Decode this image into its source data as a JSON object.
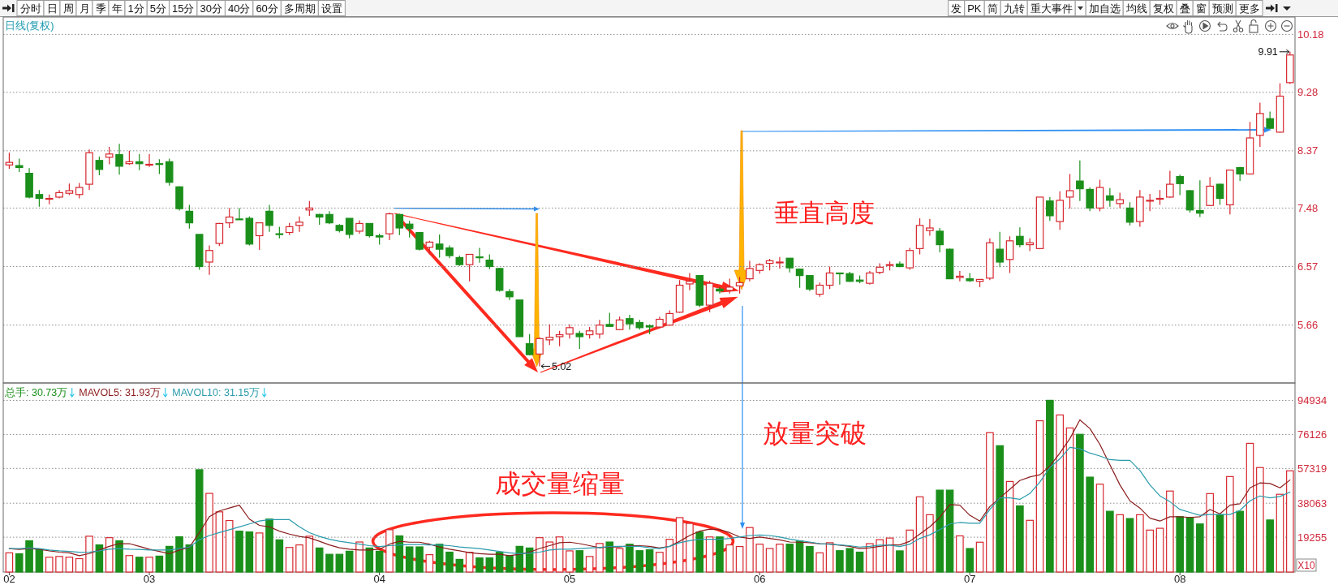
{
  "chart_data": [
    {
      "type": "other",
      "annotations": [
        "分时",
        "日",
        "周",
        "月",
        "季",
        "年",
        "1分",
        "5分",
        "15分",
        "30分",
        "40分",
        "60分",
        "多周期",
        "设置"
      ]
    },
    {
      "type": "other",
      "annotations": [
        "发",
        "PK",
        "简",
        "九转",
        "重大事件",
        "加自选",
        "均线",
        "复权",
        "叠",
        "窗",
        "预测",
        "更多"
      ]
    },
    {
      "type": "candlestick",
      "title": "日线(复权)",
      "categories": [
        null,
        null,
        null,
        null,
        null,
        null,
        null,
        null,
        null,
        null,
        null,
        null,
        null,
        null,
        null,
        null,
        null,
        null,
        null,
        null,
        null,
        null,
        null,
        null,
        null,
        null,
        null,
        null,
        null,
        null,
        null,
        null,
        null,
        null,
        null,
        null,
        null,
        null,
        null,
        null,
        null,
        null,
        null,
        null,
        null,
        null,
        null,
        null,
        null,
        null,
        null,
        null,
        null,
        null,
        null,
        null,
        null,
        null,
        null,
        null,
        null,
        null,
        null,
        null,
        null,
        null,
        null,
        null,
        null,
        null,
        null,
        null,
        null,
        null,
        null,
        null,
        null,
        null,
        null,
        null,
        null,
        null,
        null,
        null,
        null,
        null,
        null,
        null,
        null,
        null,
        null,
        null,
        null,
        null,
        null,
        null,
        null,
        null,
        null,
        null,
        null,
        null,
        null,
        null,
        null,
        null,
        null,
        null,
        null,
        null,
        null,
        null,
        null,
        null,
        null,
        null,
        null,
        null,
        null,
        null,
        null,
        null,
        null,
        null,
        null,
        null,
        null,
        null,
        null
      ],
      "ohlc": [
        [
          8.15,
          8.34,
          8.09,
          8.19
        ],
        [
          8.14,
          8.25,
          8.04,
          8.11
        ],
        [
          8.02,
          8.1,
          7.63,
          7.65
        ],
        [
          7.69,
          7.76,
          7.5,
          7.63
        ],
        [
          7.62,
          7.69,
          7.54,
          7.63
        ],
        [
          7.65,
          7.76,
          7.63,
          7.72
        ],
        [
          7.71,
          7.86,
          7.68,
          7.75
        ],
        [
          7.69,
          7.87,
          7.63,
          7.8
        ],
        [
          7.85,
          8.39,
          7.76,
          8.34
        ],
        [
          8.22,
          8.28,
          7.99,
          8.08
        ],
        [
          8.27,
          8.43,
          8.16,
          8.32
        ],
        [
          8.31,
          8.48,
          8.0,
          8.13
        ],
        [
          8.17,
          8.37,
          8.15,
          8.2
        ],
        [
          8.2,
          8.32,
          8.07,
          8.17
        ],
        [
          8.15,
          8.32,
          8.12,
          8.16
        ],
        [
          8.17,
          8.24,
          8.01,
          8.16
        ],
        [
          8.2,
          8.25,
          7.83,
          7.88
        ],
        [
          7.81,
          7.82,
          7.44,
          7.47
        ],
        [
          7.43,
          7.53,
          7.16,
          7.25
        ],
        [
          7.07,
          7.07,
          6.52,
          6.57
        ],
        [
          6.64,
          6.9,
          6.44,
          6.82
        ],
        [
          6.93,
          7.25,
          6.89,
          7.24
        ],
        [
          7.25,
          7.48,
          7.17,
          7.34
        ],
        [
          7.31,
          7.48,
          7.3,
          7.3
        ],
        [
          7.32,
          7.35,
          6.9,
          6.92
        ],
        [
          7.05,
          7.25,
          6.83,
          7.25
        ],
        [
          7.43,
          7.53,
          7.11,
          7.21
        ],
        [
          7.08,
          7.19,
          7.01,
          7.07
        ],
        [
          7.1,
          7.25,
          7.06,
          7.19
        ],
        [
          7.21,
          7.35,
          7.11,
          7.26
        ],
        [
          7.45,
          7.59,
          7.36,
          7.48
        ],
        [
          7.38,
          7.39,
          7.22,
          7.34
        ],
        [
          7.38,
          7.43,
          7.23,
          7.25
        ],
        [
          7.21,
          7.23,
          7.1,
          7.13
        ],
        [
          7.32,
          7.32,
          7.01,
          7.07
        ],
        [
          7.12,
          7.29,
          7.08,
          7.24
        ],
        [
          7.24,
          7.24,
          7.02,
          7.05
        ],
        [
          7.05,
          7.08,
          6.91,
          7.03
        ],
        [
          7.08,
          7.41,
          6.98,
          7.39
        ],
        [
          7.38,
          7.39,
          7.06,
          7.17
        ],
        [
          7.23,
          7.28,
          7.02,
          7.16
        ],
        [
          7.1,
          7.1,
          6.82,
          6.84
        ],
        [
          6.87,
          6.97,
          6.76,
          6.95
        ],
        [
          6.92,
          7.07,
          6.71,
          6.84
        ],
        [
          6.86,
          6.9,
          6.7,
          6.74
        ],
        [
          6.71,
          6.74,
          6.58,
          6.6
        ],
        [
          6.6,
          6.76,
          6.34,
          6.76
        ],
        [
          6.72,
          6.86,
          6.63,
          6.71
        ],
        [
          6.67,
          6.76,
          6.53,
          6.57
        ],
        [
          6.54,
          6.55,
          6.18,
          6.2
        ],
        [
          6.18,
          6.22,
          6.05,
          6.1
        ],
        [
          6.05,
          6.05,
          5.48,
          5.48
        ],
        [
          5.37,
          5.52,
          5.19,
          5.2
        ],
        [
          5.21,
          5.47,
          5.02,
          5.45
        ],
        [
          5.43,
          5.67,
          5.35,
          5.47
        ],
        [
          5.48,
          5.57,
          5.33,
          5.51
        ],
        [
          5.52,
          5.67,
          5.45,
          5.62
        ],
        [
          5.53,
          5.57,
          5.29,
          5.48
        ],
        [
          5.51,
          5.63,
          5.45,
          5.57
        ],
        [
          5.52,
          5.74,
          5.45,
          5.66
        ],
        [
          5.67,
          5.85,
          5.64,
          5.64
        ],
        [
          5.59,
          5.79,
          5.58,
          5.74
        ],
        [
          5.76,
          5.82,
          5.59,
          5.68
        ],
        [
          5.7,
          5.74,
          5.59,
          5.62
        ],
        [
          5.65,
          5.67,
          5.52,
          5.63
        ],
        [
          5.63,
          5.79,
          5.61,
          5.75
        ],
        [
          5.66,
          5.89,
          5.65,
          5.84
        ],
        [
          5.86,
          6.36,
          5.85,
          6.28
        ],
        [
          6.3,
          6.47,
          6.2,
          6.34
        ],
        [
          6.43,
          6.43,
          5.94,
          5.97
        ],
        [
          5.97,
          6.35,
          5.86,
          6.31
        ],
        [
          6.22,
          6.25,
          6.15,
          6.19
        ],
        [
          6.2,
          6.38,
          6.15,
          6.25
        ],
        [
          6.27,
          6.41,
          6.15,
          6.32
        ],
        [
          6.38,
          6.66,
          6.34,
          6.54
        ],
        [
          6.51,
          6.62,
          6.46,
          6.6
        ],
        [
          6.62,
          6.69,
          6.51,
          6.66
        ],
        [
          6.63,
          6.72,
          6.54,
          6.64
        ],
        [
          6.7,
          6.7,
          6.48,
          6.55
        ],
        [
          6.53,
          6.54,
          6.24,
          6.43
        ],
        [
          6.43,
          6.43,
          6.19,
          6.22
        ],
        [
          6.14,
          6.32,
          6.1,
          6.28
        ],
        [
          6.28,
          6.57,
          6.22,
          6.47
        ],
        [
          6.47,
          6.47,
          6.29,
          6.47
        ],
        [
          6.46,
          6.49,
          6.33,
          6.34
        ],
        [
          6.36,
          6.43,
          6.31,
          6.34
        ],
        [
          6.31,
          6.5,
          6.29,
          6.47
        ],
        [
          6.48,
          6.62,
          6.45,
          6.56
        ],
        [
          6.59,
          6.65,
          6.51,
          6.6
        ],
        [
          6.61,
          6.65,
          6.56,
          6.57
        ],
        [
          6.55,
          6.86,
          6.52,
          6.82
        ],
        [
          6.85,
          7.32,
          6.76,
          7.21
        ],
        [
          7.13,
          7.31,
          7.05,
          7.17
        ],
        [
          7.12,
          7.17,
          6.79,
          6.91
        ],
        [
          6.84,
          6.85,
          6.38,
          6.38
        ],
        [
          6.4,
          6.5,
          6.34,
          6.42
        ],
        [
          6.38,
          6.47,
          6.33,
          6.35
        ],
        [
          6.34,
          6.37,
          6.25,
          6.37
        ],
        [
          6.39,
          7.01,
          6.36,
          6.94
        ],
        [
          6.84,
          7.11,
          6.56,
          6.64
        ],
        [
          6.68,
          7.04,
          6.47,
          6.97
        ],
        [
          7.04,
          7.18,
          6.87,
          6.91
        ],
        [
          6.91,
          7.01,
          6.81,
          6.94
        ],
        [
          6.85,
          7.65,
          6.84,
          7.65
        ],
        [
          7.59,
          7.65,
          7.28,
          7.36
        ],
        [
          7.27,
          7.74,
          7.14,
          7.6
        ],
        [
          7.65,
          8.01,
          7.47,
          7.75
        ],
        [
          7.9,
          8.22,
          7.59,
          7.78
        ],
        [
          7.77,
          7.8,
          7.43,
          7.48
        ],
        [
          7.48,
          7.92,
          7.43,
          7.8
        ],
        [
          7.67,
          7.79,
          7.5,
          7.6
        ],
        [
          7.55,
          7.72,
          7.48,
          7.61
        ],
        [
          7.48,
          7.57,
          7.21,
          7.26
        ],
        [
          7.27,
          7.76,
          7.19,
          7.65
        ],
        [
          7.59,
          7.7,
          7.43,
          7.6
        ],
        [
          7.62,
          7.76,
          7.53,
          7.63
        ],
        [
          7.65,
          8.06,
          7.64,
          7.85
        ],
        [
          7.97,
          8.0,
          7.68,
          7.86
        ],
        [
          7.75,
          7.76,
          7.41,
          7.45
        ],
        [
          7.44,
          7.91,
          7.34,
          7.4
        ],
        [
          7.52,
          7.96,
          7.51,
          7.82
        ],
        [
          7.85,
          7.86,
          7.53,
          7.63
        ],
        [
          7.53,
          8.07,
          7.38,
          8.07
        ],
        [
          8.11,
          8.12,
          7.9,
          8.01
        ],
        [
          8.01,
          8.82,
          8.0,
          8.57
        ],
        [
          8.61,
          9.12,
          8.43,
          8.95
        ],
        [
          8.87,
          8.98,
          8.71,
          8.72
        ],
        [
          8.66,
          9.42,
          8.65,
          9.22
        ],
        [
          9.43,
          9.91,
          9.41,
          9.86
        ]
      ],
      "colors": [
        "#d7282f",
        "#1a8f1a",
        "#1a8f1a",
        "#1a8f1a",
        "#d7282f",
        "#d7282f",
        "#d7282f",
        "#d7282f",
        "#d7282f",
        "#1a8f1a",
        "#d7282f",
        "#1a8f1a",
        "#d7282f",
        "#1a8f1a",
        "#d7282f",
        "#1a8f1a",
        "#1a8f1a",
        "#1a8f1a",
        "#1a8f1a",
        "#1a8f1a",
        "#d7282f",
        "#d7282f",
        "#d7282f",
        "#1a8f1a",
        "#1a8f1a",
        "#d7282f",
        "#1a8f1a",
        "#1a8f1a",
        "#d7282f",
        "#d7282f",
        "#d7282f",
        "#1a8f1a",
        "#1a8f1a",
        "#1a8f1a",
        "#1a8f1a",
        "#d7282f",
        "#1a8f1a",
        "#1a8f1a",
        "#d7282f",
        "#1a8f1a",
        "#1a8f1a",
        "#1a8f1a",
        "#d7282f",
        "#1a8f1a",
        "#1a8f1a",
        "#1a8f1a",
        "#d7282f",
        "#1a8f1a",
        "#1a8f1a",
        "#1a8f1a",
        "#1a8f1a",
        "#1a8f1a",
        "#1a8f1a",
        "#d7282f",
        "#d7282f",
        "#d7282f",
        "#d7282f",
        "#1a8f1a",
        "#d7282f",
        "#d7282f",
        "#1a8f1a",
        "#d7282f",
        "#1a8f1a",
        "#1a8f1a",
        "#1a8f1a",
        "#d7282f",
        "#d7282f",
        "#d7282f",
        "#d7282f",
        "#1a8f1a",
        "#d7282f",
        "#1a8f1a",
        "#d7282f",
        "#d7282f",
        "#d7282f",
        "#d7282f",
        "#d7282f",
        "#d7282f",
        "#1a8f1a",
        "#1a8f1a",
        "#1a8f1a",
        "#d7282f",
        "#d7282f",
        "#1a8f1a",
        "#1a8f1a",
        "#1a8f1a",
        "#d7282f",
        "#d7282f",
        "#d7282f",
        "#1a8f1a",
        "#d7282f",
        "#d7282f",
        "#d7282f",
        "#1a8f1a",
        "#1a8f1a",
        "#d7282f",
        "#1a8f1a",
        "#d7282f",
        "#d7282f",
        "#1a8f1a",
        "#d7282f",
        "#1a8f1a",
        "#d7282f",
        "#d7282f",
        "#1a8f1a",
        "#d7282f",
        "#d7282f",
        "#1a8f1a",
        "#1a8f1a",
        "#d7282f",
        "#1a8f1a",
        "#d7282f",
        "#1a8f1a",
        "#d7282f",
        "#d7282f",
        "#d7282f",
        "#d7282f",
        "#1a8f1a",
        "#1a8f1a",
        "#1a8f1a",
        "#d7282f",
        "#1a8f1a",
        "#d7282f",
        "#1a8f1a",
        "#d7282f",
        "#d7282f",
        "#1a8f1a",
        "#d7282f",
        "#d7282f"
      ],
      "ylim": [
        4.76,
        10.45
      ],
      "yticks": [
        5.66,
        6.57,
        7.48,
        8.37,
        9.28,
        10.18
      ],
      "grid": "y",
      "tick_labels": "y",
      "annotations": [
        "9.91",
        "5.02",
        "垂直高度"
      ]
    },
    {
      "type": "bar",
      "categories": [
        "02",
        null,
        null,
        null,
        null,
        null,
        null,
        null,
        null,
        null,
        null,
        null,
        null,
        null,
        "03",
        null,
        null,
        null,
        null,
        null,
        null,
        null,
        null,
        null,
        null,
        null,
        null,
        null,
        null,
        null,
        null,
        null,
        null,
        null,
        null,
        null,
        null,
        "04",
        null,
        null,
        null,
        null,
        null,
        null,
        null,
        null,
        null,
        null,
        null,
        null,
        null,
        null,
        null,
        null,
        null,
        null,
        "05",
        null,
        null,
        null,
        null,
        null,
        null,
        null,
        null,
        null,
        null,
        null,
        null,
        null,
        null,
        null,
        null,
        null,
        null,
        "06",
        null,
        null,
        null,
        null,
        null,
        null,
        null,
        null,
        null,
        null,
        null,
        null,
        null,
        null,
        null,
        null,
        null,
        null,
        null,
        null,
        "07",
        null,
        null,
        null,
        null,
        null,
        null,
        null,
        null,
        null,
        null,
        null,
        null,
        null,
        null,
        null,
        null,
        null,
        null,
        null,
        null,
        "08",
        null,
        null,
        null,
        null,
        null,
        null,
        null,
        null,
        null,
        null,
        null
      ],
      "ylabel": "X10",
      "ylim": [
        0,
        104600
      ],
      "yticks": [
        19255,
        38063,
        57319,
        76126,
        94934
      ],
      "grid": "y",
      "legend": "top left",
      "series": [
        {
          "name": "总手: 30.73万",
          "type": "bar",
          "color": "#1a8f1a",
          "values": [
            10600,
            10100,
            17300,
            12600,
            8200,
            8600,
            8200,
            7400,
            19800,
            15000,
            19000,
            17300,
            9100,
            8200,
            8200,
            8800,
            14200,
            19500,
            15000,
            56600,
            43500,
            33300,
            28500,
            22600,
            22200,
            21600,
            29300,
            17800,
            13600,
            15000,
            19800,
            13300,
            9800,
            9800,
            11500,
            16600,
            13300,
            11500,
            23400,
            20000,
            13900,
            13900,
            9600,
            15400,
            11000,
            7000,
            10900,
            7800,
            7800,
            10900,
            9000,
            14200,
            13300,
            19000,
            16600,
            19400,
            11700,
            11800,
            8600,
            15800,
            16600,
            13000,
            15400,
            11800,
            12300,
            10900,
            18100,
            30100,
            26900,
            22100,
            19400,
            19400,
            15000,
            14100,
            24600,
            15400,
            13000,
            15400,
            15400,
            17100,
            14100,
            10600,
            16200,
            11800,
            13000,
            11000,
            15700,
            17900,
            18800,
            11700,
            23200,
            41600,
            31700,
            45300,
            45300,
            20000,
            13000,
            16500,
            77100,
            69900,
            50100,
            36600,
            28600,
            83700,
            95000,
            86900,
            79700,
            76200,
            52500,
            48600,
            33600,
            31700,
            29600,
            31700,
            23200,
            24200,
            44800,
            30600,
            30200,
            26600,
            43400,
            31700,
            52800,
            33600,
            71200,
            57800,
            28800,
            43000,
            56000
          ],
          "colors": [
            "#d7282f",
            "#1a8f1a",
            "#1a8f1a",
            "#1a8f1a",
            "#d7282f",
            "#d7282f",
            "#d7282f",
            "#d7282f",
            "#d7282f",
            "#1a8f1a",
            "#d7282f",
            "#1a8f1a",
            "#d7282f",
            "#1a8f1a",
            "#d7282f",
            "#1a8f1a",
            "#1a8f1a",
            "#1a8f1a",
            "#1a8f1a",
            "#1a8f1a",
            "#d7282f",
            "#d7282f",
            "#d7282f",
            "#1a8f1a",
            "#1a8f1a",
            "#d7282f",
            "#1a8f1a",
            "#1a8f1a",
            "#d7282f",
            "#d7282f",
            "#d7282f",
            "#1a8f1a",
            "#1a8f1a",
            "#1a8f1a",
            "#1a8f1a",
            "#d7282f",
            "#1a8f1a",
            "#1a8f1a",
            "#d7282f",
            "#1a8f1a",
            "#1a8f1a",
            "#1a8f1a",
            "#d7282f",
            "#1a8f1a",
            "#1a8f1a",
            "#1a8f1a",
            "#d7282f",
            "#1a8f1a",
            "#1a8f1a",
            "#1a8f1a",
            "#1a8f1a",
            "#1a8f1a",
            "#1a8f1a",
            "#d7282f",
            "#d7282f",
            "#d7282f",
            "#d7282f",
            "#1a8f1a",
            "#d7282f",
            "#d7282f",
            "#1a8f1a",
            "#d7282f",
            "#1a8f1a",
            "#1a8f1a",
            "#1a8f1a",
            "#d7282f",
            "#d7282f",
            "#d7282f",
            "#d7282f",
            "#1a8f1a",
            "#d7282f",
            "#1a8f1a",
            "#d7282f",
            "#d7282f",
            "#d7282f",
            "#d7282f",
            "#d7282f",
            "#d7282f",
            "#1a8f1a",
            "#1a8f1a",
            "#1a8f1a",
            "#d7282f",
            "#d7282f",
            "#1a8f1a",
            "#1a8f1a",
            "#1a8f1a",
            "#d7282f",
            "#d7282f",
            "#d7282f",
            "#1a8f1a",
            "#d7282f",
            "#d7282f",
            "#d7282f",
            "#1a8f1a",
            "#1a8f1a",
            "#d7282f",
            "#1a8f1a",
            "#d7282f",
            "#d7282f",
            "#1a8f1a",
            "#d7282f",
            "#1a8f1a",
            "#d7282f",
            "#d7282f",
            "#1a8f1a",
            "#d7282f",
            "#d7282f",
            "#1a8f1a",
            "#1a8f1a",
            "#d7282f",
            "#1a8f1a",
            "#d7282f",
            "#1a8f1a",
            "#d7282f",
            "#d7282f",
            "#d7282f",
            "#d7282f",
            "#1a8f1a",
            "#1a8f1a",
            "#1a8f1a",
            "#d7282f",
            "#1a8f1a",
            "#d7282f",
            "#1a8f1a",
            "#d7282f",
            "#d7282f",
            "#1a8f1a",
            "#d7282f",
            "#d7282f"
          ]
        },
        {
          "name": "MAVOL5: 31.93万",
          "type": "line",
          "color": "#8b1c1c",
          "values": [
            13000,
            12500,
            13000,
            12600,
            11700,
            11000,
            10600,
            9000,
            10200,
            12200,
            14200,
            15700,
            15700,
            14200,
            12600,
            11400,
            10100,
            12200,
            13600,
            21800,
            30600,
            33800,
            35400,
            37000,
            29300,
            25800,
            25000,
            22600,
            21000,
            19700,
            18900,
            17000,
            15000,
            13400,
            12600,
            12200,
            12200,
            12600,
            15400,
            17000,
            16500,
            16500,
            15400,
            13800,
            12600,
            11700,
            10700,
            10200,
            9800,
            9800,
            9000,
            9800,
            11000,
            13000,
            14600,
            16200,
            16500,
            15700,
            14600,
            13400,
            13800,
            13900,
            14600,
            14600,
            14200,
            13300,
            14200,
            17000,
            20200,
            22600,
            23700,
            23400,
            21800,
            19400,
            18600,
            19400,
            18600,
            17800,
            16600,
            16500,
            16200,
            15700,
            15400,
            14900,
            14200,
            13000,
            13400,
            14200,
            15000,
            15000,
            17000,
            21000,
            25000,
            30200,
            37300,
            37000,
            31400,
            28200,
            36200,
            41000,
            45800,
            50600,
            52600,
            53800,
            58600,
            65800,
            73800,
            84200,
            79400,
            70600,
            59400,
            48200,
            39400,
            35400,
            29800,
            28200,
            30600,
            30600,
            30200,
            30600,
            34600,
            32200,
            37000,
            37800,
            46600,
            49300,
            49000,
            46600,
            50900
          ]
        },
        {
          "name": "MAVOL10: 31.15万",
          "type": "line",
          "color": "#2a9bab",
          "values": [
            13000,
            13000,
            13300,
            13000,
            12200,
            11700,
            11400,
            10900,
            11000,
            11700,
            12600,
            13000,
            12600,
            12500,
            12200,
            12200,
            12200,
            13000,
            13800,
            17800,
            20200,
            21800,
            23400,
            25000,
            26600,
            28200,
            29000,
            29000,
            29000,
            25000,
            21800,
            19700,
            18100,
            17000,
            16200,
            15400,
            14600,
            14100,
            14600,
            15000,
            15200,
            15200,
            15000,
            15000,
            14600,
            13900,
            13400,
            13000,
            12200,
            11400,
            10600,
            10200,
            10400,
            11000,
            12200,
            12600,
            12600,
            13000,
            13300,
            13600,
            14100,
            14200,
            14200,
            14200,
            13400,
            13000,
            14200,
            16200,
            17300,
            18100,
            18100,
            18100,
            18600,
            19400,
            20200,
            20500,
            20200,
            19400,
            18200,
            17300,
            16600,
            15700,
            15400,
            15000,
            14600,
            13800,
            14200,
            14900,
            14900,
            14100,
            15400,
            18600,
            20600,
            23400,
            26600,
            27400,
            27000,
            27000,
            34600,
            41000,
            41000,
            40200,
            43400,
            49800,
            57800,
            62600,
            69000,
            68200,
            65800,
            64200,
            62200,
            61800,
            61800,
            56200,
            48200,
            42100,
            38900,
            34600,
            33000,
            31400,
            31800,
            31800,
            31800,
            34100,
            39400,
            42100,
            41000,
            41800,
            44200
          ]
        }
      ],
      "annotations": [
        "放量突破",
        "成交量缩量"
      ]
    }
  ]
}
